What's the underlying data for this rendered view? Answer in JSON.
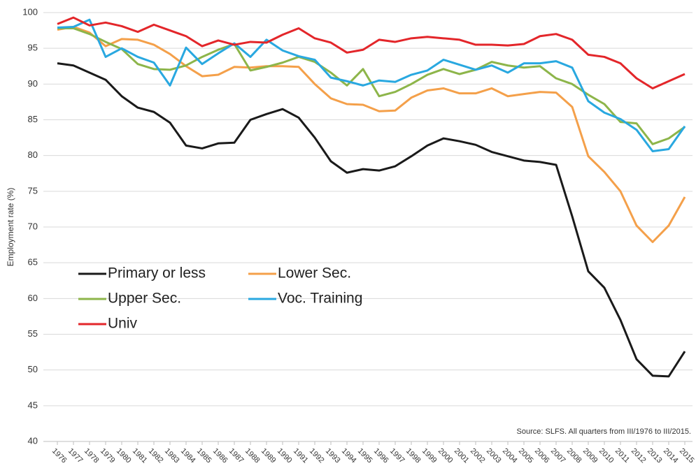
{
  "chart_data": {
    "type": "line",
    "y_label": "Employment rate (%)",
    "annotation": "Source: SLFS. All quarters from III/1976 to III/2015.",
    "categories": [
      "1976",
      "1977",
      "1978",
      "1979",
      "1980",
      "1981",
      "1982",
      "1983",
      "1984",
      "1985",
      "1986",
      "1987",
      "1988",
      "1989",
      "1990",
      "1991",
      "1992",
      "1993",
      "1994",
      "1995",
      "1996",
      "1997",
      "1998",
      "1999",
      "2000",
      "2001",
      "2002",
      "2003",
      "2004",
      "2005",
      "2006",
      "2007",
      "2008",
      "2009",
      "2010",
      "2011",
      "2012",
      "2013",
      "2014",
      "2015"
    ],
    "series": [
      {
        "name": "Primary or less",
        "color": "#1a1a1a",
        "values": [
          92.9,
          92.6,
          91.6,
          90.6,
          88.3,
          86.7,
          86.1,
          84.6,
          81.4,
          81.0,
          81.7,
          81.8,
          85.0,
          85.8,
          86.5,
          85.3,
          82.5,
          79.2,
          77.6,
          78.1,
          77.9,
          78.5,
          79.9,
          81.4,
          82.4,
          82.0,
          81.5,
          80.5,
          79.9,
          79.3,
          79.1,
          78.7,
          71.5,
          63.8,
          61.5,
          57.0,
          51.5,
          49.2,
          49.1,
          52.6
        ]
      },
      {
        "name": "Lower Sec.",
        "color": "#f4a04a",
        "values": [
          97.6,
          98.0,
          97.2,
          95.3,
          96.3,
          96.2,
          95.5,
          94.2,
          92.5,
          91.1,
          91.3,
          92.4,
          92.3,
          92.5,
          92.5,
          92.4,
          90.0,
          88.0,
          87.2,
          87.1,
          86.2,
          86.3,
          88.1,
          89.1,
          89.4,
          88.7,
          88.7,
          89.4,
          88.3,
          88.6,
          88.9,
          88.8,
          86.8,
          79.9,
          77.7,
          75.0,
          70.2,
          67.9,
          70.2,
          74.2
        ]
      },
      {
        "name": "Upper Sec.",
        "color": "#8db54a",
        "values": [
          97.8,
          97.8,
          97.0,
          95.9,
          94.9,
          92.8,
          92.1,
          92.0,
          92.6,
          93.8,
          94.8,
          95.6,
          91.9,
          92.4,
          93.0,
          93.8,
          93.1,
          91.6,
          89.8,
          92.1,
          88.3,
          88.9,
          90.0,
          91.3,
          92.1,
          91.4,
          92.0,
          93.1,
          92.6,
          92.3,
          92.5,
          90.8,
          90.0,
          88.5,
          87.2,
          84.7,
          84.5,
          81.6,
          82.4,
          84.0
        ]
      },
      {
        "name": "Voc. Training",
        "color": "#29a8e0",
        "values": [
          97.9,
          98.0,
          99.0,
          93.8,
          95.0,
          93.8,
          93.0,
          89.8,
          95.1,
          92.8,
          94.3,
          95.7,
          93.8,
          96.2,
          94.7,
          93.9,
          93.4,
          90.9,
          90.4,
          89.8,
          90.5,
          90.3,
          91.3,
          91.9,
          93.4,
          92.7,
          92.0,
          92.6,
          91.6,
          92.9,
          92.9,
          93.2,
          92.3,
          87.6,
          86.0,
          85.1,
          83.6,
          80.6,
          80.9,
          84.1
        ]
      },
      {
        "name": "Univ",
        "color": "#e3262a",
        "values": [
          98.4,
          99.3,
          98.2,
          98.6,
          98.1,
          97.3,
          98.3,
          97.5,
          96.7,
          95.3,
          96.1,
          95.5,
          95.9,
          95.8,
          96.9,
          97.8,
          96.4,
          95.8,
          94.4,
          94.8,
          96.2,
          95.9,
          96.4,
          96.6,
          96.4,
          96.2,
          95.5,
          95.5,
          95.4,
          95.6,
          96.7,
          97.0,
          96.2,
          94.1,
          93.8,
          92.9,
          90.8,
          89.4,
          90.4,
          91.4
        ]
      }
    ],
    "ylim": [
      40,
      100
    ],
    "yticks": [
      40,
      45,
      50,
      55,
      60,
      65,
      70,
      75,
      80,
      85,
      90,
      95,
      100
    ],
    "grid": true,
    "legend": "center left"
  }
}
